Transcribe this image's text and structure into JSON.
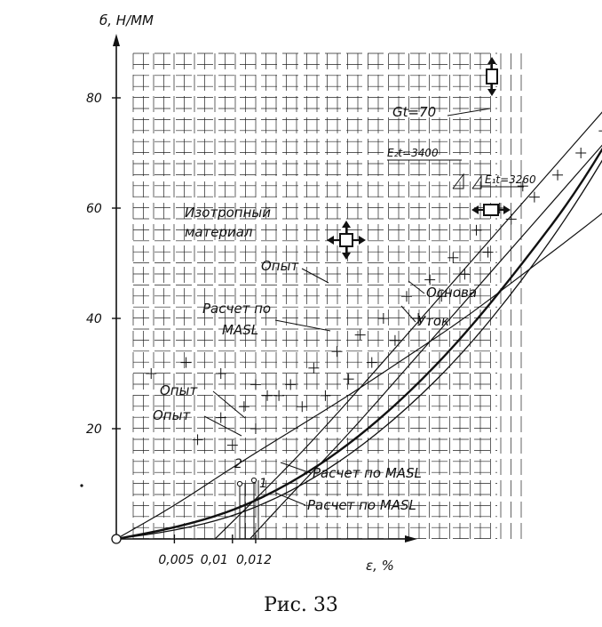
{
  "chart_data": {
    "type": "line",
    "ylabel": "б, Н/ММ",
    "xlabel": "ε, %",
    "ylim": [
      0,
      90
    ],
    "xlim": [
      0,
      0.045
    ],
    "y_ticks": [
      {
        "value": 20,
        "label": "20"
      },
      {
        "value": 40,
        "label": "40"
      },
      {
        "value": 60,
        "label": "60"
      },
      {
        "value": 80,
        "label": "80"
      }
    ],
    "x_ticks": [
      {
        "value": 0.005,
        "label": "0,005"
      },
      {
        "value": 0.01,
        "label": "0,01"
      },
      {
        "value": 0.012,
        "label": "0,012"
      }
    ],
    "point_labels": {
      "p2": "2",
      "p1": "1"
    },
    "annotations": {
      "isotropic_1": "Изотропный",
      "isotropic_2": "материал",
      "gt": "Gt=70",
      "e2t": "E₂t=3400",
      "e1t": "E₁t=3260",
      "opyt_upper": "Опыт",
      "osnova": "Основа",
      "utok": "Уток",
      "raschet_upper_1": "Расчет по",
      "raschet_upper_2": "MASL",
      "opyt_left_1": "Опыт",
      "opyt_left_2": "Опыт",
      "raschet_lower_1": "Расчет по MASL",
      "raschet_lower_2": "Расчет по MASL"
    },
    "series": [
      {
        "points": [
          [
            0,
            0
          ],
          [
            0.005,
            6
          ],
          [
            0.01,
            13
          ],
          [
            0.015,
            19.5
          ],
          [
            0.02,
            26
          ],
          [
            0.025,
            33
          ],
          [
            0.03,
            40
          ],
          [
            0.035,
            48
          ],
          [
            0.04,
            56
          ],
          [
            0.043,
            61
          ]
        ]
      },
      {
        "points": [
          [
            0,
            0
          ],
          [
            0.005,
            2
          ],
          [
            0.01,
            5
          ],
          [
            0.015,
            10
          ],
          [
            0.02,
            17
          ],
          [
            0.025,
            26
          ],
          [
            0.03,
            37
          ],
          [
            0.035,
            50
          ],
          [
            0.04,
            64
          ],
          [
            0.045,
            82
          ]
        ]
      },
      {
        "points": [
          [
            0,
            0
          ],
          [
            0.005,
            1.5
          ],
          [
            0.01,
            4
          ],
          [
            0.015,
            8.5
          ],
          [
            0.02,
            15
          ],
          [
            0.025,
            23.5
          ],
          [
            0.03,
            34
          ],
          [
            0.035,
            47
          ],
          [
            0.04,
            62
          ],
          [
            0.045,
            80
          ]
        ]
      },
      {
        "points": [
          [
            0.0115,
            0
          ],
          [
            0.015,
            8
          ],
          [
            0.02,
            19
          ],
          [
            0.025,
            31
          ],
          [
            0.03,
            43
          ],
          [
            0.035,
            55
          ],
          [
            0.04,
            67
          ],
          [
            0.045,
            79
          ]
        ]
      },
      {
        "points": [
          [
            0.0085,
            0
          ],
          [
            0.015,
            13.5
          ],
          [
            0.02,
            25
          ],
          [
            0.025,
            37
          ],
          [
            0.03,
            49
          ],
          [
            0.035,
            61
          ],
          [
            0.04,
            73
          ],
          [
            0.045,
            85
          ]
        ]
      }
    ],
    "experiment_points": [
      [
        0.007,
        18
      ],
      [
        0.009,
        22
      ],
      [
        0.011,
        24
      ],
      [
        0.013,
        26
      ],
      [
        0.015,
        28
      ],
      [
        0.017,
        31
      ],
      [
        0.019,
        34
      ],
      [
        0.021,
        37
      ],
      [
        0.023,
        40
      ],
      [
        0.025,
        44
      ],
      [
        0.027,
        47
      ],
      [
        0.029,
        51
      ],
      [
        0.031,
        56
      ],
      [
        0.033,
        60
      ],
      [
        0.035,
        64
      ],
      [
        0.018,
        26
      ],
      [
        0.02,
        29
      ],
      [
        0.022,
        32
      ],
      [
        0.024,
        36
      ],
      [
        0.026,
        40
      ],
      [
        0.028,
        44
      ],
      [
        0.03,
        48
      ],
      [
        0.032,
        52
      ],
      [
        0.034,
        58
      ],
      [
        0.036,
        62
      ],
      [
        0.038,
        66
      ],
      [
        0.04,
        70
      ],
      [
        0.042,
        74
      ],
      [
        0.044,
        78
      ],
      [
        0.003,
        30
      ],
      [
        0.006,
        32
      ],
      [
        0.009,
        30
      ],
      [
        0.012,
        28
      ],
      [
        0.014,
        26
      ],
      [
        0.016,
        24
      ],
      [
        0.012,
        20
      ],
      [
        0.01,
        17
      ]
    ],
    "grid": true
  }
}
